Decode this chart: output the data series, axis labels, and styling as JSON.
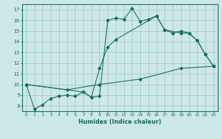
{
  "xlabel": "Humidex (Indice chaleur)",
  "bg_color": "#cce8e8",
  "grid_color": "#aacccc",
  "line_color": "#1a6b5a",
  "xlim": [
    -0.5,
    23.5
  ],
  "ylim": [
    7.5,
    17.5
  ],
  "yticks": [
    8,
    9,
    10,
    11,
    12,
    13,
    14,
    15,
    16,
    17
  ],
  "xticks": [
    0,
    1,
    2,
    3,
    4,
    5,
    6,
    7,
    8,
    9,
    10,
    11,
    12,
    13,
    14,
    15,
    16,
    17,
    18,
    19,
    20,
    21,
    22,
    23
  ],
  "line1_x": [
    0,
    1,
    2,
    3,
    4,
    5,
    6,
    7,
    8,
    9,
    10,
    11,
    12,
    13,
    14,
    15,
    16,
    17,
    18,
    19,
    20,
    21,
    22,
    23
  ],
  "line1_y": [
    10.0,
    7.7,
    8.1,
    8.7,
    8.9,
    9.0,
    8.9,
    9.3,
    8.8,
    8.9,
    16.0,
    16.2,
    16.1,
    17.1,
    15.9,
    16.1,
    16.4,
    15.1,
    14.8,
    15.0,
    14.8,
    14.1,
    12.8,
    11.7
  ],
  "line2_x": [
    0,
    7,
    8,
    9,
    10,
    11,
    16,
    17,
    19,
    20,
    21,
    22,
    23
  ],
  "line2_y": [
    10.0,
    9.3,
    8.8,
    11.5,
    13.5,
    14.2,
    16.4,
    15.1,
    14.8,
    14.8,
    14.1,
    12.8,
    11.7
  ],
  "line3_x": [
    0,
    5,
    9,
    14,
    19,
    23
  ],
  "line3_y": [
    10.0,
    9.5,
    10.0,
    10.5,
    11.5,
    11.7
  ]
}
